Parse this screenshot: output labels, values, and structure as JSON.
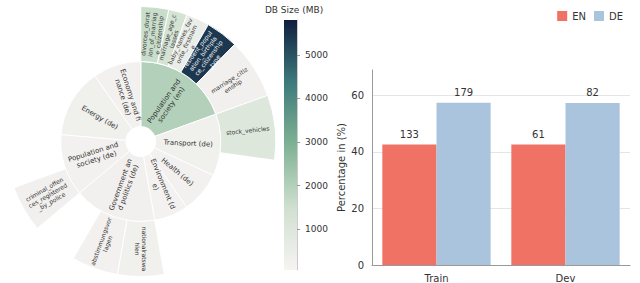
{
  "chart_data": [
    {
      "type": "sunburst",
      "colorbar": {
        "title": "DB Size (MB)",
        "range": [
          60,
          5800
        ],
        "ticks": [
          1000,
          2000,
          3000,
          4000,
          5000
        ]
      },
      "nodes": [
        {
          "name": "Population and society (en)",
          "db_size": 2000,
          "value": 70,
          "children": [
            {
              "name": "divorces_duration_of_marriage_citizenship",
              "db_size": 1600,
              "value": 12
            },
            {
              "name": "marriage_age_classes",
              "db_size": 1300,
              "value": 8
            },
            {
              "name": "baby_names_favorite_firstname",
              "db_size": 500,
              "value": 10
            },
            {
              "name": "resident_population_birthplace_citizenship_type",
              "db_size": 5400,
              "value": 14
            },
            {
              "name": "marriage_citizenship",
              "db_size": 250,
              "value": 26
            }
          ]
        },
        {
          "name": "Transport (de)",
          "db_size": 300,
          "value": 45,
          "children": [
            {
              "name": "stock_vehicles",
              "db_size": 1000,
              "value": 28
            }
          ]
        },
        {
          "name": "Health (de)",
          "db_size": 200,
          "value": 30
        },
        {
          "name": "Environment (de)",
          "db_size": 150,
          "value": 25
        },
        {
          "name": "Government and politics (de)",
          "db_size": 250,
          "value": 60,
          "children": [
            {
              "name": "nationalratswahlen",
              "db_size": 300,
              "value": 20
            },
            {
              "name": "abstimmungsvorlagen",
              "db_size": 200,
              "value": 20
            }
          ]
        },
        {
          "name": "Population and society (de)",
          "db_size": 200,
          "value": 45,
          "children": [
            {
              "name": "criminal_offences_registered_by_police",
              "db_size": 250,
              "value": 20
            }
          ]
        },
        {
          "name": "Energy (de)",
          "db_size": 300,
          "value": 50
        },
        {
          "name": "Economy and finance (de)",
          "db_size": 200,
          "value": 35
        }
      ]
    },
    {
      "type": "bar",
      "categories": [
        "Train",
        "Dev"
      ],
      "series": [
        {
          "name": "EN",
          "color": "#ef7264",
          "values": [
            42.63,
            42.66
          ],
          "counts": [
            133,
            61
          ]
        },
        {
          "name": "DE",
          "color": "#abc4de",
          "values": [
            57.37,
            57.34
          ],
          "counts": [
            179,
            82
          ]
        }
      ],
      "ylabel": "Percentage in (%)",
      "ylim": [
        0,
        69
      ],
      "yticks": [
        0,
        20,
        40,
        60
      ],
      "grid": true,
      "legend": "top-right"
    }
  ]
}
